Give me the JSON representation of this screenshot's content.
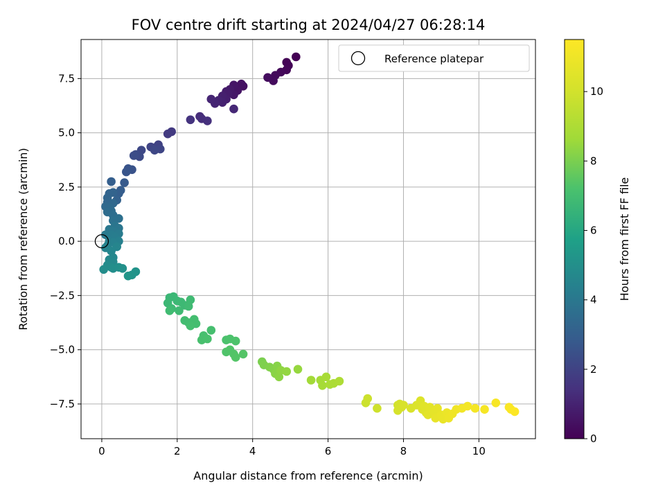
{
  "chart_data": {
    "type": "scatter",
    "title": "FOV centre drift starting at 2024/04/27 06:28:14",
    "xlabel": "Angular distance from reference (arcmin)",
    "ylabel": "Rotation from reference (arcmin)",
    "xlim": [
      -0.55,
      11.5
    ],
    "ylim": [
      -9.1,
      9.3
    ],
    "xticks": [
      0,
      2,
      4,
      6,
      8,
      10
    ],
    "yticks": [
      -7.5,
      -5.0,
      -2.5,
      0.0,
      2.5,
      5.0,
      7.5
    ],
    "xtick_labels": [
      "0",
      "2",
      "4",
      "6",
      "8",
      "10"
    ],
    "ytick_labels": [
      "−7.5",
      "−5.0",
      "−2.5",
      "0.0",
      "2.5",
      "5.0",
      "7.5"
    ],
    "grid": true,
    "legend": {
      "position": "top-right",
      "entries": [
        "Reference platepar"
      ]
    },
    "reference_point": {
      "x": 0.0,
      "y": 0.0,
      "marker": "open-circle"
    },
    "colorbar": {
      "label": "Hours from first FF file",
      "colormap": "viridis",
      "range": [
        0,
        11.5
      ],
      "ticks": [
        0,
        2,
        4,
        6,
        8,
        10
      ],
      "tick_labels": [
        "0",
        "2",
        "4",
        "6",
        "8",
        "10"
      ]
    },
    "points": [
      [
        5.15,
        8.5,
        0.0
      ],
      [
        4.9,
        8.25,
        0.05
      ],
      [
        4.95,
        8.1,
        0.1
      ],
      [
        4.9,
        7.9,
        0.15
      ],
      [
        4.75,
        7.8,
        0.2
      ],
      [
        4.6,
        7.65,
        0.25
      ],
      [
        4.55,
        7.4,
        0.3
      ],
      [
        4.4,
        7.55,
        0.35
      ],
      [
        3.75,
        7.15,
        0.45
      ],
      [
        3.7,
        7.25,
        0.5
      ],
      [
        3.6,
        6.95,
        0.55
      ],
      [
        3.5,
        7.2,
        0.6
      ],
      [
        3.5,
        6.75,
        0.65
      ],
      [
        3.4,
        7.0,
        0.7
      ],
      [
        3.35,
        6.8,
        0.75
      ],
      [
        3.3,
        6.9,
        0.8
      ],
      [
        3.3,
        6.55,
        0.85
      ],
      [
        3.2,
        6.7,
        0.9
      ],
      [
        3.2,
        6.4,
        0.95
      ],
      [
        3.1,
        6.5,
        1.0
      ],
      [
        3.0,
        6.35,
        1.05
      ],
      [
        2.9,
        6.55,
        1.1
      ],
      [
        3.5,
        6.1,
        1.15
      ],
      [
        2.6,
        5.75,
        1.3
      ],
      [
        2.65,
        5.65,
        1.35
      ],
      [
        2.8,
        5.55,
        1.4
      ],
      [
        2.35,
        5.6,
        1.5
      ],
      [
        1.85,
        5.05,
        1.7
      ],
      [
        1.75,
        4.95,
        1.75
      ],
      [
        1.5,
        4.45,
        1.95
      ],
      [
        1.45,
        4.35,
        2.0
      ],
      [
        1.3,
        4.35,
        2.05
      ],
      [
        1.55,
        4.25,
        2.1
      ],
      [
        1.4,
        4.2,
        2.15
      ],
      [
        1.05,
        4.2,
        2.2
      ],
      [
        1.0,
        3.9,
        2.25
      ],
      [
        0.9,
        4.0,
        2.3
      ],
      [
        0.85,
        3.95,
        2.35
      ],
      [
        0.8,
        3.3,
        2.55
      ],
      [
        0.7,
        3.35,
        2.6
      ],
      [
        0.65,
        3.2,
        2.65
      ],
      [
        0.6,
        2.7,
        2.8
      ],
      [
        0.5,
        2.35,
        2.9
      ],
      [
        0.45,
        2.2,
        2.95
      ],
      [
        0.25,
        2.75,
        3.0
      ],
      [
        0.4,
        1.9,
        3.1
      ],
      [
        0.3,
        2.25,
        3.15
      ],
      [
        0.2,
        2.2,
        3.2
      ],
      [
        0.15,
        2.0,
        3.25
      ],
      [
        0.15,
        1.8,
        3.3
      ],
      [
        0.3,
        1.75,
        3.35
      ],
      [
        0.1,
        1.6,
        3.4
      ],
      [
        0.2,
        1.55,
        3.45
      ],
      [
        0.25,
        1.4,
        3.5
      ],
      [
        0.15,
        1.35,
        3.55
      ],
      [
        0.3,
        1.2,
        3.6
      ],
      [
        0.45,
        1.05,
        3.7
      ],
      [
        0.3,
        0.95,
        3.75
      ],
      [
        0.35,
        0.7,
        3.9
      ],
      [
        0.45,
        0.6,
        3.95
      ],
      [
        0.2,
        0.55,
        4.0
      ],
      [
        0.3,
        0.45,
        4.05
      ],
      [
        0.1,
        0.3,
        4.1
      ],
      [
        0.45,
        0.35,
        4.15
      ],
      [
        0.25,
        0.3,
        4.2
      ],
      [
        0.35,
        0.2,
        4.25
      ],
      [
        0.2,
        0.0,
        4.3
      ],
      [
        0.45,
        0.0,
        4.35
      ],
      [
        0.3,
        -0.05,
        4.4
      ],
      [
        0.15,
        -0.2,
        4.45
      ],
      [
        0.1,
        -0.3,
        4.5
      ],
      [
        0.4,
        -0.25,
        4.55
      ],
      [
        0.25,
        -0.45,
        4.6
      ],
      [
        0.3,
        -0.75,
        4.65
      ],
      [
        0.2,
        -0.85,
        4.7
      ],
      [
        0.3,
        -0.95,
        4.75
      ],
      [
        0.15,
        -1.1,
        4.8
      ],
      [
        0.25,
        -1.2,
        4.85
      ],
      [
        0.05,
        -1.3,
        4.9
      ],
      [
        0.3,
        -1.25,
        4.95
      ],
      [
        0.45,
        -1.2,
        5.0
      ],
      [
        0.55,
        -1.25,
        5.05
      ],
      [
        0.9,
        -1.4,
        5.15
      ],
      [
        0.8,
        -1.55,
        5.2
      ],
      [
        0.7,
        -1.6,
        5.25
      ],
      [
        1.8,
        -2.6,
        6.7
      ],
      [
        1.9,
        -2.55,
        6.72
      ],
      [
        2.0,
        -2.75,
        6.74
      ],
      [
        1.75,
        -2.85,
        6.76
      ],
      [
        2.1,
        -2.8,
        6.78
      ],
      [
        2.2,
        -2.95,
        6.8
      ],
      [
        1.85,
        -3.1,
        6.82
      ],
      [
        2.05,
        -3.2,
        6.84
      ],
      [
        2.35,
        -2.7,
        6.86
      ],
      [
        2.3,
        -3.0,
        6.88
      ],
      [
        1.8,
        -3.2,
        6.9
      ],
      [
        2.2,
        -3.65,
        6.95
      ],
      [
        2.3,
        -3.75,
        6.98
      ],
      [
        2.45,
        -3.6,
        7.0
      ],
      [
        2.5,
        -3.8,
        7.02
      ],
      [
        2.35,
        -3.9,
        7.04
      ],
      [
        2.9,
        -4.1,
        7.06
      ],
      [
        2.7,
        -4.35,
        7.1
      ],
      [
        2.65,
        -4.55,
        7.12
      ],
      [
        2.8,
        -4.5,
        7.14
      ],
      [
        3.3,
        -4.55,
        7.2
      ],
      [
        3.4,
        -4.5,
        7.22
      ],
      [
        3.55,
        -4.6,
        7.24
      ],
      [
        3.3,
        -5.1,
        7.28
      ],
      [
        3.4,
        -5.0,
        7.3
      ],
      [
        3.5,
        -5.2,
        7.32
      ],
      [
        3.55,
        -5.35,
        7.34
      ],
      [
        3.75,
        -5.2,
        7.36
      ],
      [
        4.25,
        -5.55,
        8.0
      ],
      [
        4.3,
        -5.7,
        8.05
      ],
      [
        4.45,
        -5.8,
        8.1
      ],
      [
        4.55,
        -5.9,
        8.15
      ],
      [
        4.65,
        -5.75,
        8.2
      ],
      [
        4.6,
        -6.1,
        8.25
      ],
      [
        4.7,
        -6.25,
        8.3
      ],
      [
        4.75,
        -5.95,
        8.35
      ],
      [
        4.9,
        -6.0,
        8.4
      ],
      [
        5.2,
        -5.9,
        8.45
      ],
      [
        5.55,
        -6.4,
        8.7
      ],
      [
        5.8,
        -6.4,
        8.75
      ],
      [
        5.85,
        -6.65,
        8.8
      ],
      [
        5.95,
        -6.25,
        8.85
      ],
      [
        6.05,
        -6.6,
        8.9
      ],
      [
        6.15,
        -6.55,
        8.95
      ],
      [
        6.3,
        -6.45,
        9.0
      ],
      [
        7.0,
        -7.45,
        9.8
      ],
      [
        7.05,
        -7.25,
        9.85
      ],
      [
        7.3,
        -7.7,
        9.9
      ],
      [
        7.85,
        -7.55,
        10.0
      ],
      [
        7.9,
        -7.5,
        10.05
      ],
      [
        7.95,
        -7.65,
        10.1
      ],
      [
        7.85,
        -7.8,
        10.15
      ],
      [
        8.0,
        -7.55,
        10.2
      ],
      [
        8.2,
        -7.7,
        10.25
      ],
      [
        8.35,
        -7.55,
        10.3
      ],
      [
        8.45,
        -7.35,
        10.35
      ],
      [
        8.5,
        -7.75,
        10.4
      ],
      [
        8.6,
        -7.9,
        10.45
      ],
      [
        8.55,
        -7.6,
        10.5
      ],
      [
        8.7,
        -7.65,
        10.55
      ],
      [
        8.65,
        -8.0,
        10.6
      ],
      [
        8.8,
        -7.85,
        10.65
      ],
      [
        8.9,
        -7.7,
        10.7
      ],
      [
        8.85,
        -8.15,
        10.75
      ],
      [
        9.0,
        -8.0,
        10.8
      ],
      [
        9.05,
        -8.2,
        10.85
      ],
      [
        9.15,
        -7.9,
        10.9
      ],
      [
        9.2,
        -8.15,
        10.95
      ],
      [
        9.3,
        -7.95,
        11.0
      ],
      [
        9.4,
        -7.75,
        11.05
      ],
      [
        9.55,
        -7.7,
        11.1
      ],
      [
        9.7,
        -7.6,
        11.15
      ],
      [
        9.9,
        -7.7,
        11.2
      ],
      [
        10.15,
        -7.75,
        11.25
      ],
      [
        10.45,
        -7.45,
        11.3
      ],
      [
        10.8,
        -7.65,
        11.35
      ],
      [
        10.85,
        -7.75,
        11.4
      ],
      [
        10.95,
        -7.85,
        11.45
      ]
    ]
  }
}
